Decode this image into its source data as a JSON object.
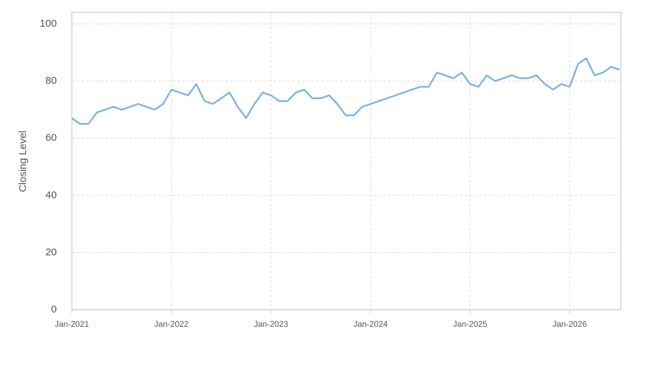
{
  "chart_data": {
    "type": "line",
    "y_label": "Closing Level",
    "x": [
      "2021-01",
      "2021-02",
      "2021-03",
      "2021-04",
      "2021-05",
      "2021-06",
      "2021-07",
      "2021-08",
      "2021-09",
      "2021-10",
      "2021-11",
      "2021-12",
      "2022-01",
      "2022-02",
      "2022-03",
      "2022-04",
      "2022-05",
      "2022-06",
      "2022-07",
      "2022-08",
      "2022-09",
      "2022-10",
      "2022-11",
      "2022-12",
      "2023-01",
      "2023-02",
      "2023-03",
      "2023-04",
      "2023-05",
      "2023-06",
      "2023-07",
      "2023-08",
      "2023-09",
      "2023-10",
      "2023-11",
      "2023-12",
      "2024-01",
      "2024-02",
      "2024-03",
      "2024-04",
      "2024-05",
      "2024-06",
      "2024-07",
      "2024-08",
      "2024-09",
      "2024-10",
      "2024-11",
      "2024-12",
      "2025-01",
      "2025-02",
      "2025-03",
      "2025-04",
      "2025-05",
      "2025-06",
      "2025-07",
      "2025-08",
      "2025-09",
      "2025-10",
      "2025-11",
      "2025-12",
      "2026-01",
      "2026-02",
      "2026-03",
      "2026-04",
      "2026-05",
      "2026-06",
      "2026-07"
    ],
    "series": [
      {
        "name": "Closing Level",
        "color": "#7eb3e6",
        "values": [
          67,
          65,
          65,
          69,
          70,
          71,
          70,
          71,
          72,
          71,
          70,
          72,
          77,
          76,
          75,
          79,
          73,
          72,
          74,
          76,
          71,
          67,
          72,
          76,
          75,
          73,
          73,
          76,
          77,
          74,
          74,
          75,
          72,
          68,
          68,
          71,
          72,
          73,
          74,
          75,
          76,
          77,
          78,
          78,
          83,
          82,
          81,
          83,
          79,
          78,
          82,
          80,
          81,
          82,
          81,
          81,
          82,
          79,
          77,
          79,
          78,
          86,
          88,
          82,
          83,
          85,
          84
        ]
      }
    ],
    "xlim": [
      "2021-01",
      "2026-07"
    ],
    "xticks": [
      {
        "value": "2021-01",
        "label": "Jan-2021"
      },
      {
        "value": "2022-01",
        "label": "Jan-2022"
      },
      {
        "value": "2023-01",
        "label": "Jan-2023"
      },
      {
        "value": "2024-01",
        "label": "Jan-2024"
      },
      {
        "value": "2025-01",
        "label": "Jan-2025"
      },
      {
        "value": "2026-01",
        "label": "Jan-2026"
      }
    ],
    "ylim": [
      0,
      100
    ],
    "yticks": [
      0,
      20,
      40,
      60,
      80,
      100
    ],
    "grid": true
  }
}
